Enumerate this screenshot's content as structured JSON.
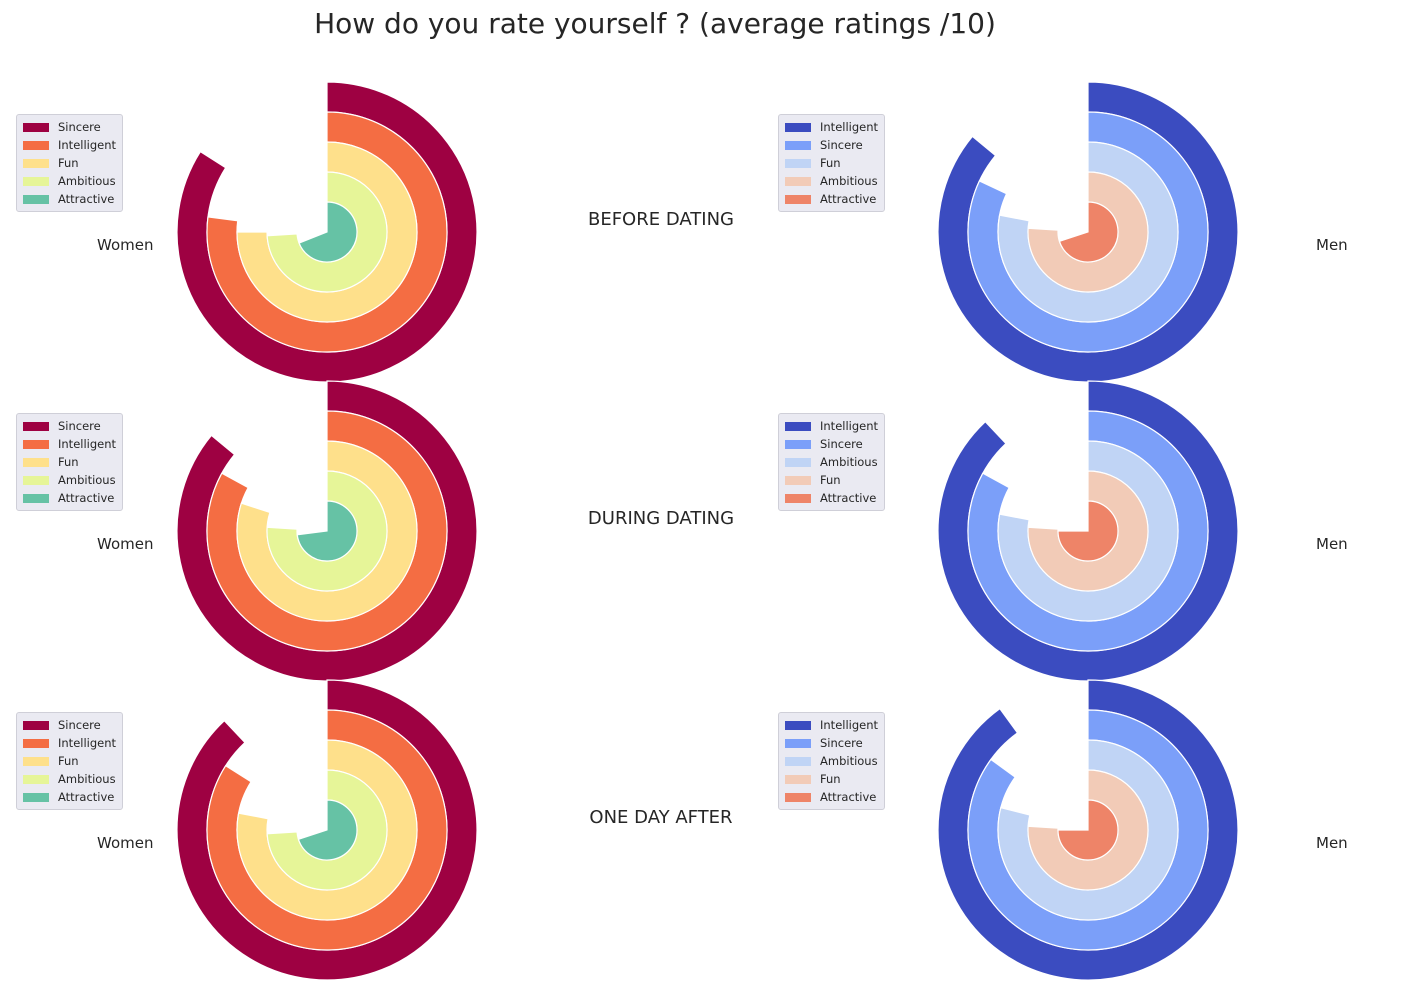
{
  "title": "How do you rate yourself ? (average ratings /10)",
  "chart_data": [
    {
      "type": "radial-bar",
      "row_label": "BEFORE DATING",
      "panels": [
        {
          "group": "Women",
          "colors": [
            "#9e0142",
            "#f46d43",
            "#fee08b",
            "#e6f598",
            "#66c2a5"
          ],
          "series": [
            {
              "name": "Sincere",
              "value": 8.4
            },
            {
              "name": "Intelligent",
              "value": 7.7
            },
            {
              "name": "Fun",
              "value": 7.5
            },
            {
              "name": "Ambitious",
              "value": 7.4
            },
            {
              "name": "Attractive",
              "value": 6.9
            }
          ]
        },
        {
          "group": "Men",
          "colors": [
            "#3b4cc0",
            "#7b9ff9",
            "#c0d4f5",
            "#f2cbb7",
            "#ee8468"
          ],
          "series": [
            {
              "name": "Intelligent",
              "value": 8.6
            },
            {
              "name": "Sincere",
              "value": 8.2
            },
            {
              "name": "Fun",
              "value": 7.8
            },
            {
              "name": "Ambitious",
              "value": 7.6
            },
            {
              "name": "Attractive",
              "value": 7.0
            }
          ]
        }
      ]
    },
    {
      "type": "radial-bar",
      "row_label": "DURING DATING",
      "panels": [
        {
          "group": "Women",
          "colors": [
            "#9e0142",
            "#f46d43",
            "#fee08b",
            "#e6f598",
            "#66c2a5"
          ],
          "series": [
            {
              "name": "Sincere",
              "value": 8.6
            },
            {
              "name": "Intelligent",
              "value": 8.3
            },
            {
              "name": "Fun",
              "value": 8.0
            },
            {
              "name": "Ambitious",
              "value": 7.6
            },
            {
              "name": "Attractive",
              "value": 7.3
            }
          ]
        },
        {
          "group": "Men",
          "colors": [
            "#3b4cc0",
            "#7b9ff9",
            "#c0d4f5",
            "#f2cbb7",
            "#ee8468"
          ],
          "series": [
            {
              "name": "Intelligent",
              "value": 8.8
            },
            {
              "name": "Sincere",
              "value": 8.3
            },
            {
              "name": "Ambitious",
              "value": 7.8
            },
            {
              "name": "Fun",
              "value": 7.6
            },
            {
              "name": "Attractive",
              "value": 7.5
            }
          ]
        }
      ]
    },
    {
      "type": "radial-bar",
      "row_label": "ONE DAY AFTER",
      "panels": [
        {
          "group": "Women",
          "colors": [
            "#9e0142",
            "#f46d43",
            "#fee08b",
            "#e6f598",
            "#66c2a5"
          ],
          "series": [
            {
              "name": "Sincere",
              "value": 8.8
            },
            {
              "name": "Intelligent",
              "value": 8.4
            },
            {
              "name": "Fun",
              "value": 7.8
            },
            {
              "name": "Ambitious",
              "value": 7.4
            },
            {
              "name": "Attractive",
              "value": 7.0
            }
          ]
        },
        {
          "group": "Men",
          "colors": [
            "#3b4cc0",
            "#7b9ff9",
            "#c0d4f5",
            "#f2cbb7",
            "#ee8468"
          ],
          "series": [
            {
              "name": "Intelligent",
              "value": 9.0
            },
            {
              "name": "Sincere",
              "value": 8.5
            },
            {
              "name": "Ambitious",
              "value": 7.9
            },
            {
              "name": "Fun",
              "value": 7.6
            },
            {
              "name": "Attractive",
              "value": 7.5
            }
          ]
        }
      ]
    }
  ]
}
